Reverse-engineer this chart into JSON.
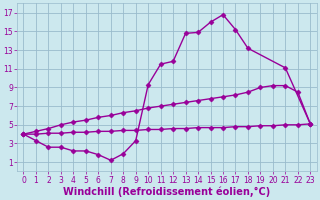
{
  "xlabel": "Windchill (Refroidissement éolien,°C)",
  "bg_color": "#cce8ee",
  "line_color": "#990099",
  "grid_color": "#99bbcc",
  "line1_x": [
    0,
    1,
    2,
    3,
    4,
    5,
    6,
    7,
    8,
    9,
    10,
    11,
    12,
    13,
    14,
    15,
    16,
    17,
    18,
    21,
    23
  ],
  "line1_y": [
    4.0,
    3.3,
    2.6,
    2.6,
    2.2,
    2.2,
    1.8,
    1.2,
    1.9,
    3.3,
    9.3,
    11.5,
    11.8,
    14.8,
    14.9,
    16.0,
    16.8,
    15.2,
    13.2,
    11.1,
    5.1
  ],
  "line2_x": [
    0,
    1,
    2,
    3,
    4,
    5,
    6,
    7,
    8,
    9,
    10,
    11,
    12,
    13,
    14,
    15,
    16,
    17,
    18,
    19,
    20,
    21,
    22,
    23
  ],
  "line2_y": [
    4.0,
    4.3,
    4.6,
    5.0,
    5.3,
    5.5,
    5.8,
    6.0,
    6.3,
    6.5,
    6.8,
    7.0,
    7.2,
    7.4,
    7.6,
    7.8,
    8.0,
    8.2,
    8.5,
    9.0,
    9.2,
    9.2,
    8.5,
    5.1
  ],
  "line3_x": [
    0,
    1,
    2,
    3,
    4,
    5,
    6,
    7,
    8,
    9,
    10,
    11,
    12,
    13,
    14,
    15,
    16,
    17,
    18,
    19,
    20,
    21,
    22,
    23
  ],
  "line3_y": [
    4.0,
    4.0,
    4.1,
    4.1,
    4.2,
    4.2,
    4.3,
    4.3,
    4.4,
    4.4,
    4.5,
    4.5,
    4.6,
    4.6,
    4.7,
    4.7,
    4.7,
    4.8,
    4.8,
    4.9,
    4.9,
    5.0,
    5.0,
    5.1
  ],
  "xlim": [
    -0.5,
    23.5
  ],
  "ylim": [
    0,
    18
  ],
  "xticks": [
    0,
    1,
    2,
    3,
    4,
    5,
    6,
    7,
    8,
    9,
    10,
    11,
    12,
    13,
    14,
    15,
    16,
    17,
    18,
    19,
    20,
    21,
    22,
    23
  ],
  "yticks": [
    1,
    3,
    5,
    7,
    9,
    11,
    13,
    15,
    17
  ],
  "marker": "D",
  "markersize": 2.5,
  "linewidth": 1.0,
  "xlabel_fontsize": 7,
  "tick_fontsize": 5.5
}
